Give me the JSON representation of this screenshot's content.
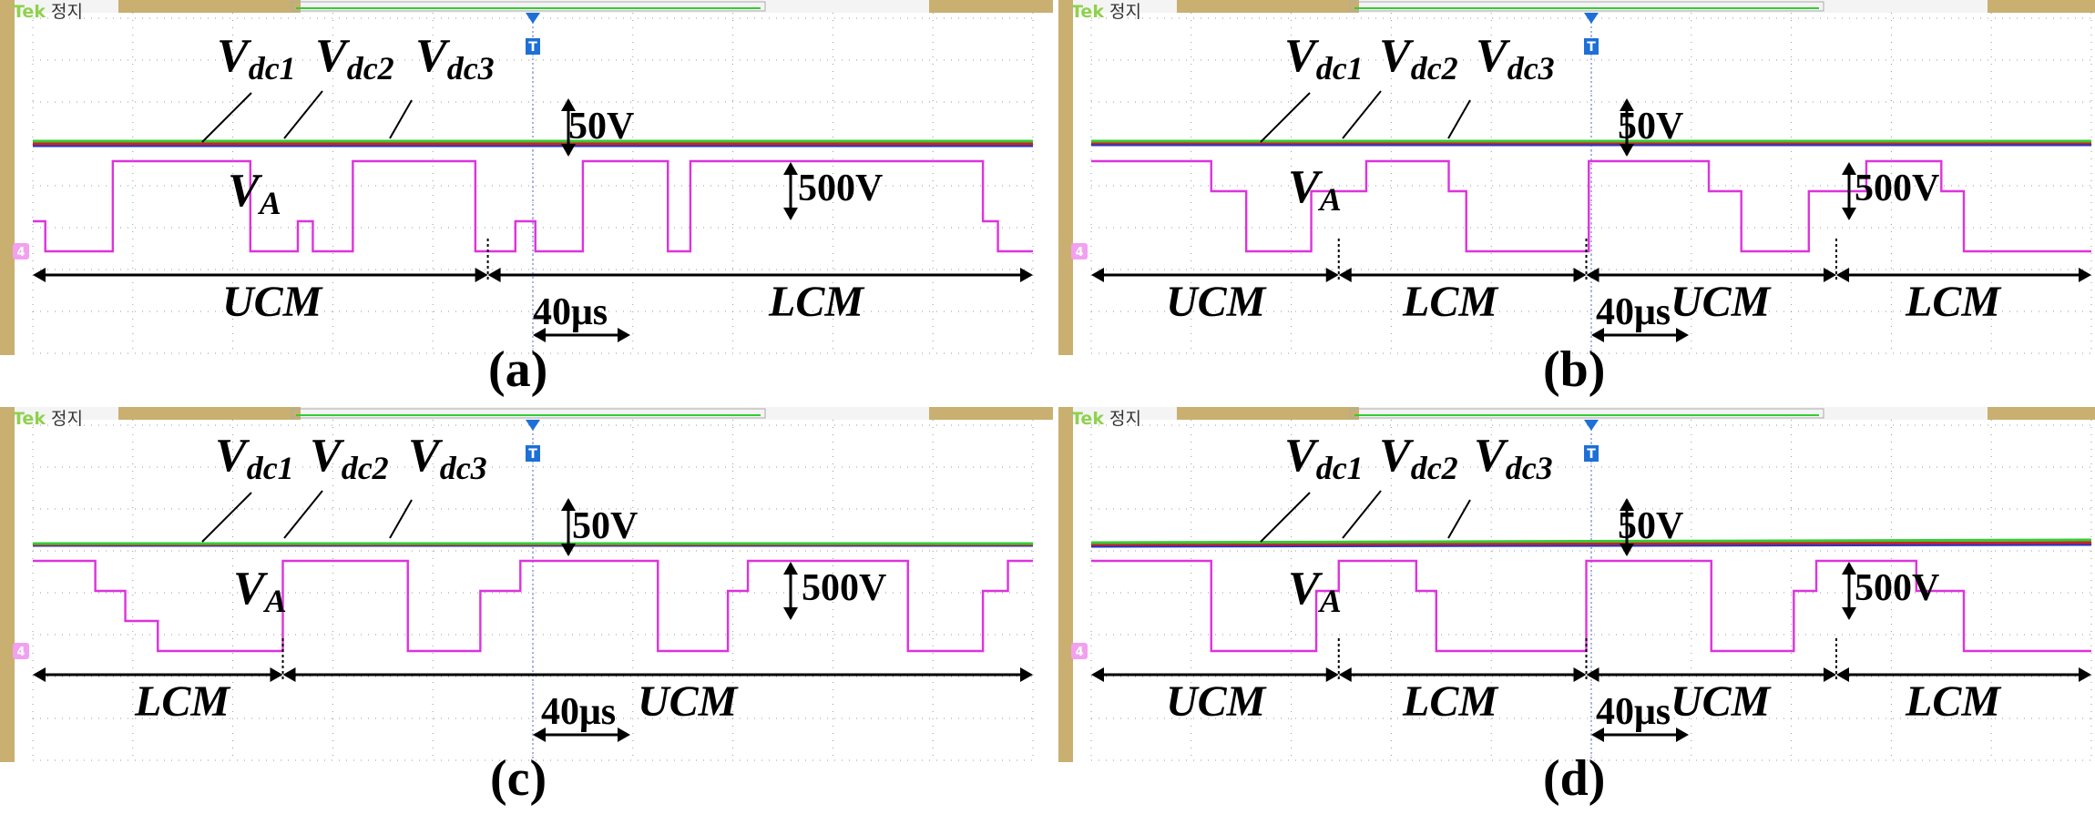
{
  "panels": {
    "a": {
      "caption": "(a)",
      "vdc_labels": [
        "dc1",
        "dc2",
        "dc3"
      ],
      "va_label": "A",
      "segments": [
        "UCM",
        "LCM"
      ],
      "time_scale": "40μs",
      "small_scale": "50V",
      "large_scale": "500V"
    },
    "b": {
      "caption": "(b)",
      "vdc_labels": [
        "dc1",
        "dc2",
        "dc3"
      ],
      "va_label": "A",
      "segments": [
        "UCM",
        "LCM",
        "UCM",
        "LCM"
      ],
      "time_scale": "40μs",
      "small_scale": "50V",
      "large_scale": "500V"
    },
    "c": {
      "caption": "(c)",
      "vdc_labels": [
        "dc1",
        "dc2",
        "dc3"
      ],
      "va_label": "A",
      "segments": [
        "LCM",
        "UCM"
      ],
      "time_scale": "40μs",
      "small_scale": "50V",
      "large_scale": "500V"
    },
    "d": {
      "caption": "(d)",
      "vdc_labels": [
        "dc1",
        "dc2",
        "dc3"
      ],
      "va_label": "A",
      "segments": [
        "UCM",
        "LCM",
        "UCM",
        "LCM"
      ],
      "time_scale": "40μs",
      "small_scale": "50V",
      "large_scale": "500V"
    }
  },
  "scope": {
    "brand": "Tek",
    "state": "정지",
    "channel_marker": "4",
    "trigger_marker": "T"
  },
  "colors": {
    "vdc1": "#2233cc",
    "vdc2": "#cc2222",
    "vdc3": "#33cc33",
    "va": "#dd33dd",
    "frame": "#c9b070",
    "grid": "#999999",
    "trigger": "#1e6fd6"
  },
  "chart_data": [
    {
      "type": "line",
      "panel": "a",
      "x_units": "μs",
      "time_div": 40,
      "mode_segments": [
        {
          "mode": "UCM",
          "from": 0,
          "to": 182
        },
        {
          "mode": "LCM",
          "from": 182,
          "to": 400
        }
      ],
      "series": [
        {
          "name": "Vdc1",
          "values": [
            [
              0,
              0.66
            ],
            [
              400,
              0.66
            ]
          ]
        },
        {
          "name": "Vdc2",
          "values": [
            [
              0,
              0.67
            ],
            [
              400,
              0.67
            ]
          ]
        },
        {
          "name": "Vdc3",
          "values": [
            [
              0,
              0.685
            ],
            [
              400,
              0.685
            ]
          ]
        },
        {
          "name": "VA",
          "values": [
            [
              0,
              1
            ],
            [
              5,
              1
            ],
            [
              5,
              0
            ],
            [
              32,
              0
            ],
            [
              32,
              3
            ],
            [
              87,
              3
            ],
            [
              87,
              0
            ],
            [
              106,
              0
            ],
            [
              106,
              1
            ],
            [
              112,
              1
            ],
            [
              112,
              0
            ],
            [
              128,
              0
            ],
            [
              128,
              3
            ],
            [
              177,
              3
            ],
            [
              177,
              0
            ],
            [
              193,
              0
            ],
            [
              193,
              1
            ],
            [
              201,
              1
            ],
            [
              201,
              0
            ],
            [
              220,
              0
            ],
            [
              220,
              3
            ],
            [
              254,
              3
            ],
            [
              254,
              0
            ],
            [
              263,
              0
            ],
            [
              263,
              3
            ],
            [
              380,
              3
            ],
            [
              380,
              1
            ],
            [
              386,
              1
            ],
            [
              386,
              0
            ],
            [
              400,
              0
            ]
          ]
        }
      ]
    },
    {
      "type": "line",
      "panel": "b",
      "x_units": "μs",
      "time_div": 40,
      "mode_segments": [
        {
          "mode": "UCM",
          "from": 0,
          "to": 99
        },
        {
          "mode": "LCM",
          "from": 99,
          "to": 198
        },
        {
          "mode": "UCM",
          "from": 198,
          "to": 298
        },
        {
          "mode": "LCM",
          "from": 298,
          "to": 400
        }
      ],
      "series": [
        {
          "name": "Vdc1",
          "values": [
            [
              0,
              0.665
            ],
            [
              400,
              0.665
            ]
          ]
        },
        {
          "name": "Vdc2",
          "values": [
            [
              0,
              0.675
            ],
            [
              400,
              0.675
            ]
          ]
        },
        {
          "name": "Vdc3",
          "values": [
            [
              0,
              0.685
            ],
            [
              400,
              0.685
            ]
          ]
        },
        {
          "name": "VA",
          "values": [
            [
              0,
              3
            ],
            [
              48,
              3
            ],
            [
              48,
              2
            ],
            [
              62,
              2
            ],
            [
              62,
              0
            ],
            [
              88,
              0
            ],
            [
              88,
              2
            ],
            [
              110,
              2
            ],
            [
              110,
              3
            ],
            [
              143,
              3
            ],
            [
              143,
              2
            ],
            [
              150,
              2
            ],
            [
              150,
              0
            ],
            [
              199,
              0
            ],
            [
              199,
              3
            ],
            [
              247,
              3
            ],
            [
              247,
              2
            ],
            [
              260,
              2
            ],
            [
              260,
              0
            ],
            [
              287,
              0
            ],
            [
              287,
              2
            ],
            [
              310,
              2
            ],
            [
              310,
              3
            ],
            [
              340,
              3
            ],
            [
              340,
              2
            ],
            [
              349,
              2
            ],
            [
              349,
              0
            ],
            [
              400,
              0
            ]
          ]
        }
      ]
    },
    {
      "type": "line",
      "panel": "c",
      "x_units": "μs",
      "time_div": 40,
      "mode_segments": [
        {
          "mode": "LCM",
          "from": 0,
          "to": 100
        },
        {
          "mode": "UCM",
          "from": 100,
          "to": 400
        }
      ],
      "series": [
        {
          "name": "Vdc1",
          "values": [
            [
              0,
              0.66
            ],
            [
              400,
              0.66
            ]
          ]
        },
        {
          "name": "Vdc2",
          "values": [
            [
              0,
              0.665
            ],
            [
              400,
              0.665
            ]
          ]
        },
        {
          "name": "Vdc3",
          "values": [
            [
              0,
              0.67
            ],
            [
              400,
              0.67
            ]
          ]
        },
        {
          "name": "VA",
          "values": [
            [
              0,
              3
            ],
            [
              25,
              3
            ],
            [
              25,
              2
            ],
            [
              37,
              2
            ],
            [
              37,
              1
            ],
            [
              50,
              1
            ],
            [
              50,
              0
            ],
            [
              100,
              0
            ],
            [
              100,
              3
            ],
            [
              150,
              3
            ],
            [
              150,
              0
            ],
            [
              179,
              0
            ],
            [
              179,
              2
            ],
            [
              195,
              2
            ],
            [
              195,
              3
            ],
            [
              250,
              3
            ],
            [
              250,
              0
            ],
            [
              278,
              0
            ],
            [
              278,
              2
            ],
            [
              286,
              2
            ],
            [
              286,
              3
            ],
            [
              350,
              3
            ],
            [
              350,
              0
            ],
            [
              380,
              0
            ],
            [
              380,
              2
            ],
            [
              390,
              2
            ],
            [
              390,
              3
            ],
            [
              400,
              3
            ]
          ]
        }
      ]
    },
    {
      "type": "line",
      "panel": "d",
      "x_units": "μs",
      "time_div": 40,
      "mode_segments": [
        {
          "mode": "UCM",
          "from": 0,
          "to": 99
        },
        {
          "mode": "LCM",
          "from": 99,
          "to": 198
        },
        {
          "mode": "UCM",
          "from": 198,
          "to": 298
        },
        {
          "mode": "LCM",
          "from": 298,
          "to": 400
        }
      ],
      "series": [
        {
          "name": "Vdc1",
          "values": [
            [
              0,
              0.655
            ],
            [
              400,
              0.665
            ]
          ]
        },
        {
          "name": "Vdc2",
          "values": [
            [
              0,
              0.665
            ],
            [
              400,
              0.675
            ]
          ]
        },
        {
          "name": "Vdc3",
          "values": [
            [
              0,
              0.675
            ],
            [
              400,
              0.69
            ]
          ]
        },
        {
          "name": "VA",
          "values": [
            [
              0,
              3
            ],
            [
              48,
              3
            ],
            [
              48,
              0
            ],
            [
              90,
              0
            ],
            [
              90,
              2
            ],
            [
              99,
              2
            ],
            [
              99,
              3
            ],
            [
              130,
              3
            ],
            [
              130,
              2
            ],
            [
              138,
              2
            ],
            [
              138,
              0
            ],
            [
              198,
              0
            ],
            [
              198,
              3
            ],
            [
              248,
              3
            ],
            [
              248,
              0
            ],
            [
              281,
              0
            ],
            [
              281,
              2
            ],
            [
              290,
              2
            ],
            [
              290,
              3
            ],
            [
              330,
              3
            ],
            [
              330,
              2
            ],
            [
              349,
              2
            ],
            [
              349,
              0
            ],
            [
              400,
              0
            ]
          ]
        }
      ]
    }
  ]
}
